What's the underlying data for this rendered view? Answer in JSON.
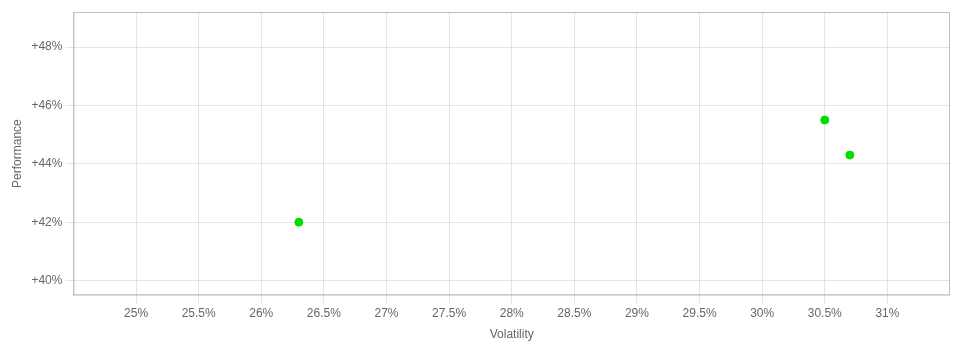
{
  "chart_data": {
    "type": "scatter",
    "xlabel": "Volatility",
    "ylabel": "Performance",
    "x": [
      0.263,
      0.305,
      0.307
    ],
    "values": [
      0.42,
      0.455,
      0.443
    ],
    "color": "#00dd00",
    "xlim": [
      0.245,
      0.315
    ],
    "ylim": [
      0.395,
      0.492
    ],
    "xticks": [
      {
        "value": 0.25,
        "label": "25%"
      },
      {
        "value": 0.255,
        "label": "25.5%"
      },
      {
        "value": 0.26,
        "label": "26%"
      },
      {
        "value": 0.265,
        "label": "26.5%"
      },
      {
        "value": 0.27,
        "label": "27%"
      },
      {
        "value": 0.275,
        "label": "27.5%"
      },
      {
        "value": 0.28,
        "label": "28%"
      },
      {
        "value": 0.285,
        "label": "28.5%"
      },
      {
        "value": 0.29,
        "label": "29%"
      },
      {
        "value": 0.295,
        "label": "29.5%"
      },
      {
        "value": 0.3,
        "label": "30%"
      },
      {
        "value": 0.305,
        "label": "30.5%"
      },
      {
        "value": 0.31,
        "label": "31%"
      }
    ],
    "yticks": [
      {
        "value": 0.4,
        "label": "+40%"
      },
      {
        "value": 0.42,
        "label": "+42%"
      },
      {
        "value": 0.44,
        "label": "+44%"
      },
      {
        "value": 0.46,
        "label": "+46%"
      },
      {
        "value": 0.48,
        "label": "+48%"
      }
    ],
    "grid": true
  }
}
